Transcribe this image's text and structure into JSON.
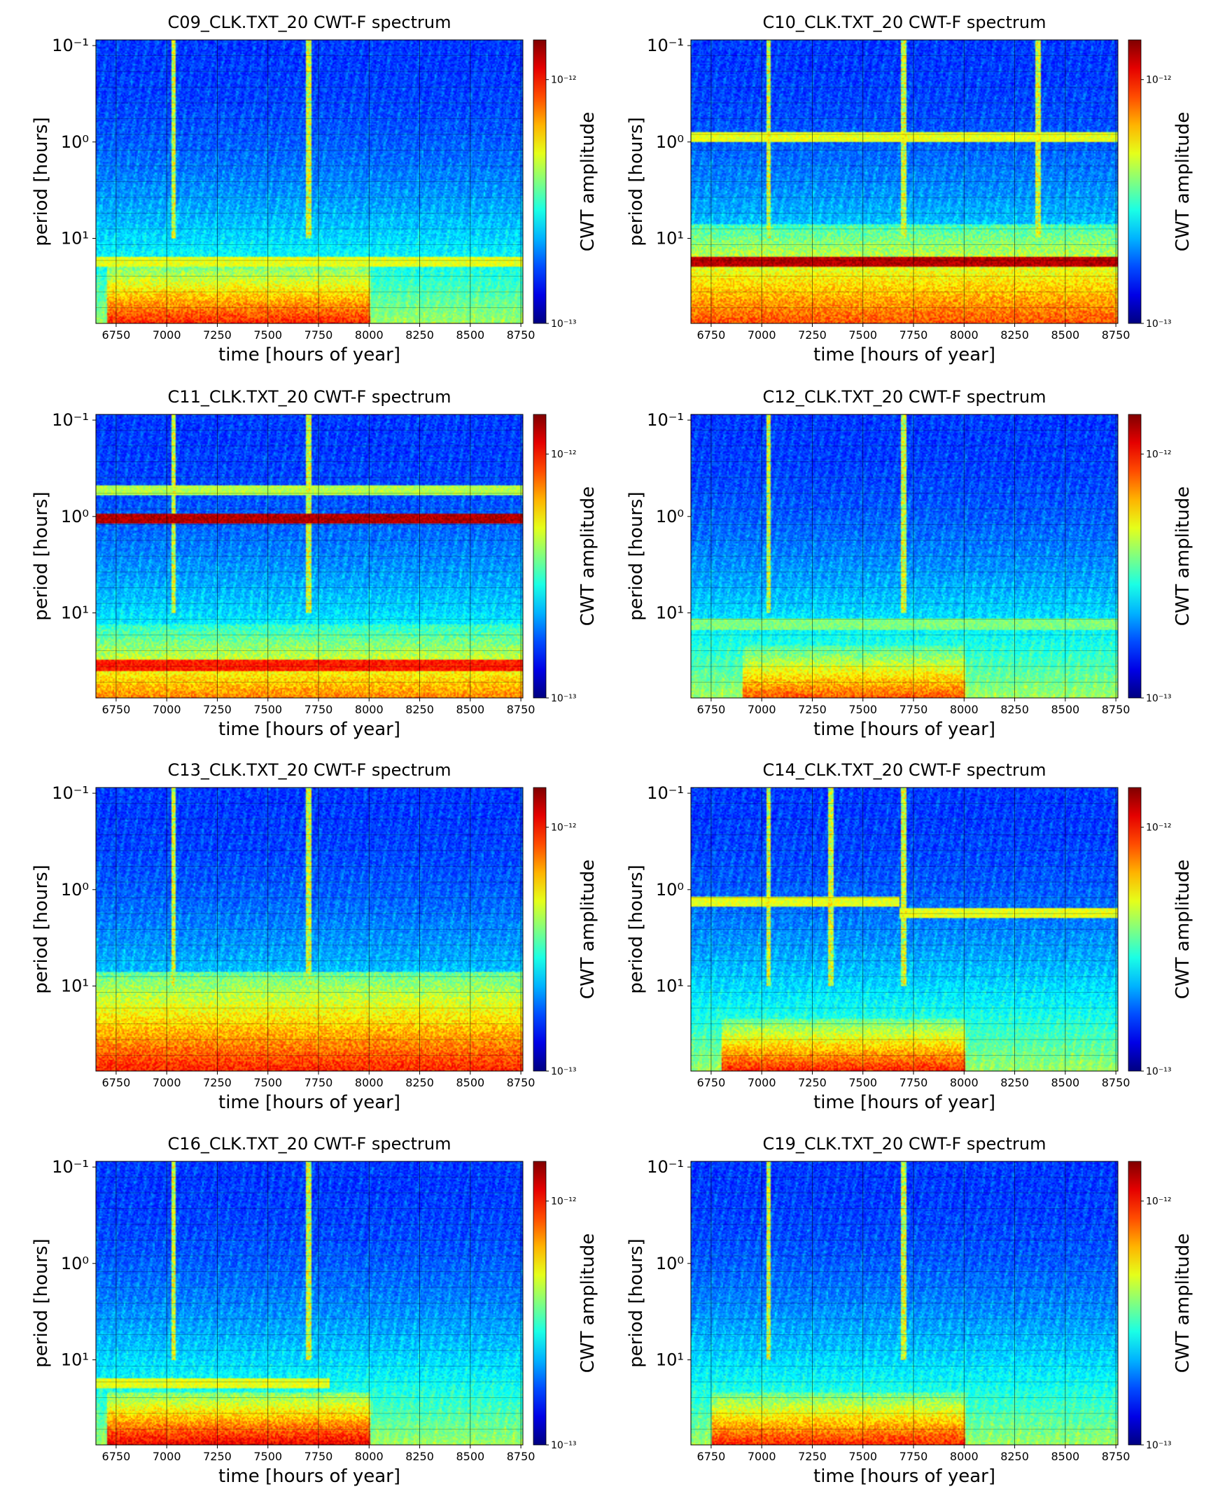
{
  "chart_data": [
    {
      "type": "heatmap",
      "title": "C09_CLK.TXT_20  CWT-F spectrum",
      "xlabel": "time [hours of year]",
      "ylabel": "period [hours]",
      "colorbar_label": "CWT amplitude",
      "colorbar_ticks": [
        "10⁻¹²",
        "10⁻¹³"
      ],
      "xlim": [
        6650,
        8760
      ],
      "xticks": [
        6750,
        7000,
        7250,
        7500,
        7750,
        8000,
        8250,
        8500,
        8750
      ],
      "yticks": [
        "10⁻¹",
        "10⁰",
        "10¹"
      ],
      "colormap": "jet",
      "features": [
        {
          "kind": "low-period-band",
          "period": 20,
          "strength": 0.55
        },
        {
          "kind": "hot-region",
          "period_range": [
            20,
            80
          ],
          "time_range": [
            6700,
            8000
          ],
          "strength": 0.85
        },
        {
          "kind": "spike",
          "time": 7030
        },
        {
          "kind": "spike",
          "time": 7700
        }
      ]
    },
    {
      "type": "heatmap",
      "title": "C10_CLK.TXT_20  CWT-F spectrum",
      "xlabel": "time [hours of year]",
      "ylabel": "period [hours]",
      "colorbar_label": "CWT amplitude",
      "colorbar_ticks": [
        "10⁻¹²",
        "10⁻¹³"
      ],
      "xlim": [
        6650,
        8760
      ],
      "xticks": [
        6750,
        7000,
        7250,
        7500,
        7750,
        8000,
        8250,
        8500,
        8750
      ],
      "yticks": [
        "10⁻¹",
        "10⁰",
        "10¹"
      ],
      "colormap": "jet",
      "features": [
        {
          "kind": "band",
          "period": 1.0,
          "strength": 0.55
        },
        {
          "kind": "low-period-band",
          "period": 20,
          "strength": 0.9
        },
        {
          "kind": "hot-region",
          "period_range": [
            8,
            80
          ],
          "time_range": [
            6650,
            8760
          ],
          "strength": 0.8
        },
        {
          "kind": "spike",
          "time": 7030
        },
        {
          "kind": "spike",
          "time": 7700
        },
        {
          "kind": "spike",
          "time": 8360
        }
      ]
    },
    {
      "type": "heatmap",
      "title": "C11_CLK.TXT_20  CWT-F spectrum",
      "xlabel": "time [hours of year]",
      "ylabel": "period [hours]",
      "colorbar_label": "CWT amplitude",
      "colorbar_ticks": [
        "10⁻¹²",
        "10⁻¹³"
      ],
      "xlim": [
        6650,
        8760
      ],
      "xticks": [
        6750,
        7000,
        7250,
        7500,
        7750,
        8000,
        8250,
        8500,
        8750
      ],
      "yticks": [
        "10⁻¹",
        "10⁰",
        "10¹"
      ],
      "colormap": "jet",
      "features": [
        {
          "kind": "band",
          "period": 0.6,
          "strength": 0.5
        },
        {
          "kind": "band",
          "period": 1.2,
          "strength": 0.9
        },
        {
          "kind": "low-period-band",
          "period": 40,
          "strength": 0.8
        },
        {
          "kind": "hot-region",
          "period_range": [
            15,
            80
          ],
          "time_range": [
            6650,
            8760
          ],
          "strength": 0.75
        },
        {
          "kind": "spike",
          "time": 7030
        },
        {
          "kind": "spike",
          "time": 7700
        }
      ]
    },
    {
      "type": "heatmap",
      "title": "C12_CLK.TXT_20  CWT-F spectrum",
      "xlabel": "time [hours of year]",
      "ylabel": "period [hours]",
      "colorbar_label": "CWT amplitude",
      "colorbar_ticks": [
        "10⁻¹²",
        "10⁻¹³"
      ],
      "xlim": [
        6650,
        8760
      ],
      "xticks": [
        6750,
        7000,
        7250,
        7500,
        7750,
        8000,
        8250,
        8500,
        8750
      ],
      "yticks": [
        "10⁻¹",
        "10⁰",
        "10¹"
      ],
      "colormap": "jet",
      "features": [
        {
          "kind": "low-period-band",
          "period": 15,
          "strength": 0.45
        },
        {
          "kind": "hot-region",
          "period_range": [
            25,
            80
          ],
          "time_range": [
            6900,
            8000
          ],
          "strength": 0.8
        },
        {
          "kind": "spike",
          "time": 7030
        },
        {
          "kind": "spike",
          "time": 7700
        }
      ]
    },
    {
      "type": "heatmap",
      "title": "C13_CLK.TXT_20  CWT-F spectrum",
      "xlabel": "time [hours of year]",
      "ylabel": "period [hours]",
      "colorbar_label": "CWT amplitude",
      "colorbar_ticks": [
        "10⁻¹²",
        "10⁻¹³"
      ],
      "xlim": [
        6650,
        8760
      ],
      "xticks": [
        6750,
        7000,
        7250,
        7500,
        7750,
        8000,
        8250,
        8500,
        8750
      ],
      "yticks": [
        "10⁻¹",
        "10⁰",
        "10¹"
      ],
      "colormap": "jet",
      "features": [
        {
          "kind": "hot-region",
          "period_range": [
            8,
            80
          ],
          "time_range": [
            6650,
            8760
          ],
          "strength": 0.85
        },
        {
          "kind": "spike",
          "time": 7030
        },
        {
          "kind": "spike",
          "time": 7700
        }
      ]
    },
    {
      "type": "heatmap",
      "title": "C14_CLK.TXT_20  CWT-F spectrum",
      "xlabel": "time [hours of year]",
      "ylabel": "period [hours]",
      "colorbar_label": "CWT amplitude",
      "colorbar_ticks": [
        "10⁻¹²",
        "10⁻¹³"
      ],
      "xlim": [
        6650,
        8760
      ],
      "xticks": [
        6750,
        7000,
        7250,
        7500,
        7750,
        8000,
        8250,
        8500,
        8750
      ],
      "yticks": [
        "10⁻¹",
        "10⁰",
        "10¹"
      ],
      "colormap": "jet",
      "features": [
        {
          "kind": "band",
          "period": 1.5,
          "time_range": [
            6650,
            7680
          ],
          "strength": 0.55
        },
        {
          "kind": "band",
          "period": 2.0,
          "time_range": [
            7680,
            8760
          ],
          "strength": 0.55
        },
        {
          "kind": "hot-region",
          "period_range": [
            25,
            80
          ],
          "time_range": [
            6800,
            8000
          ],
          "strength": 0.85
        },
        {
          "kind": "spike",
          "time": 7030
        },
        {
          "kind": "spike",
          "time": 7340
        },
        {
          "kind": "spike",
          "time": 7700
        }
      ]
    },
    {
      "type": "heatmap",
      "title": "C16_CLK.TXT_20  CWT-F spectrum",
      "xlabel": "time [hours of year]",
      "ylabel": "period [hours]",
      "colorbar_label": "CWT amplitude",
      "colorbar_ticks": [
        "10⁻¹²",
        "10⁻¹³"
      ],
      "xlim": [
        6650,
        8760
      ],
      "xticks": [
        6750,
        7000,
        7250,
        7500,
        7750,
        8000,
        8250,
        8500,
        8750
      ],
      "yticks": [
        "10⁻¹",
        "10⁰",
        "10¹"
      ],
      "colormap": "jet",
      "features": [
        {
          "kind": "low-period-band",
          "period": 20,
          "time_range": [
            6650,
            7800
          ],
          "strength": 0.55
        },
        {
          "kind": "hot-region",
          "period_range": [
            25,
            80
          ],
          "time_range": [
            6700,
            8000
          ],
          "strength": 0.9
        },
        {
          "kind": "spike",
          "time": 7030
        },
        {
          "kind": "spike",
          "time": 7700
        }
      ]
    },
    {
      "type": "heatmap",
      "title": "C19_CLK.TXT_20  CWT-F spectrum",
      "xlabel": "time [hours of year]",
      "ylabel": "period [hours]",
      "colorbar_label": "CWT amplitude",
      "colorbar_ticks": [
        "10⁻¹²",
        "10⁻¹³"
      ],
      "xlim": [
        6650,
        8760
      ],
      "xticks": [
        6750,
        7000,
        7250,
        7500,
        7750,
        8000,
        8250,
        8500,
        8750
      ],
      "yticks": [
        "10⁻¹",
        "10⁰",
        "10¹"
      ],
      "colormap": "jet",
      "features": [
        {
          "kind": "hot-region",
          "period_range": [
            25,
            80
          ],
          "time_range": [
            6750,
            8000
          ],
          "strength": 0.85
        },
        {
          "kind": "spike",
          "time": 7030
        },
        {
          "kind": "spike",
          "time": 7700
        }
      ]
    }
  ]
}
